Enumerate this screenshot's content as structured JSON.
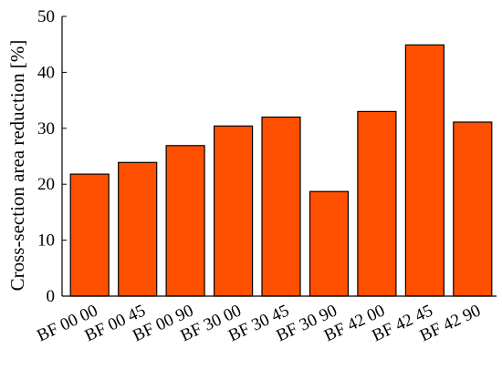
{
  "chart_data": {
    "type": "bar",
    "categories": [
      "BF 00 00",
      "BF 00 45",
      "BF 00 90",
      "BF 30 00",
      "BF 30 45",
      "BF 30 90",
      "BF 42 00",
      "BF 42 45",
      "BF 42 90"
    ],
    "values": [
      21.8,
      23.9,
      26.9,
      30.4,
      32.0,
      18.7,
      33.0,
      44.9,
      31.1
    ],
    "title": "",
    "xlabel": "",
    "ylabel": "Cross-section area reduction [%]",
    "ylim": [
      0,
      50
    ],
    "yticks": [
      0,
      10,
      20,
      30,
      40,
      50
    ],
    "grid": false,
    "bar_color": "#ff5000",
    "bar_edge_color": "#000000"
  }
}
